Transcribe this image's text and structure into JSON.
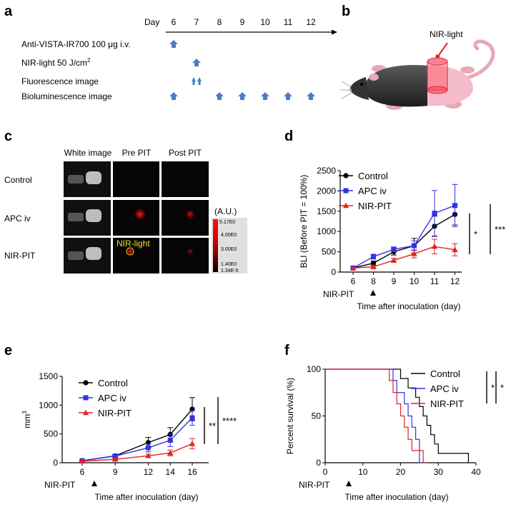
{
  "panels": {
    "a": {
      "label": "a",
      "day_label": "Day",
      "days": [
        "6",
        "7",
        "8",
        "9",
        "10",
        "11",
        "12"
      ],
      "rows": [
        {
          "text": "Anti-VISTA-IR700 100 μg i.v.",
          "days": [
            6
          ]
        },
        {
          "text": "NIR-light 50 J/cm",
          "sup": "2",
          "days": [
            7
          ]
        },
        {
          "text": "Fluorescence image",
          "days": [
            7
          ],
          "double": true
        },
        {
          "text": "Bioluminescence image",
          "days": [
            6,
            8,
            9,
            10,
            11,
            12
          ]
        }
      ],
      "arrow_color": "#4a7cc4"
    },
    "b": {
      "label": "b",
      "light_label": "NIR-light"
    },
    "c": {
      "label": "c",
      "columns": [
        "White image",
        "Pre PIT",
        "Post PIT"
      ],
      "rows": [
        "Control",
        "APC iv",
        "NIR-PIT"
      ],
      "overlay": "NIR-light",
      "colorbar_unit": "(A.U.)",
      "colorbar_ticks": [
        "5.17E0",
        "4.00E0",
        "3.00E0",
        "1.40E0",
        "1.34E-5"
      ]
    },
    "d": {
      "label": "d"
    },
    "e": {
      "label": "e"
    },
    "f": {
      "label": "f"
    }
  },
  "colors": {
    "control": "#000000",
    "apc": "#3232e6",
    "nirpit": "#e62020"
  },
  "chart_data": [
    {
      "panel": "d",
      "type": "line",
      "x": [
        6,
        8,
        9,
        10,
        11,
        12
      ],
      "xticks": [
        "6",
        "8",
        "9",
        "10",
        "11",
        "12"
      ],
      "ylim": [
        0,
        2500
      ],
      "yticks": [
        "0",
        "500",
        "1000",
        "1500",
        "2000",
        "2500"
      ],
      "ylabel": "BLI (Before PIT = 100%)",
      "xlabel": "Time after inoculation (day)",
      "treatment_label": "NIR-PIT",
      "series": [
        {
          "name": "Control",
          "values": [
            100,
            220,
            500,
            650,
            1130,
            1420
          ],
          "err": [
            0,
            50,
            80,
            180,
            250,
            260
          ]
        },
        {
          "name": "APC iv",
          "values": [
            100,
            380,
            560,
            650,
            1450,
            1640
          ],
          "err": [
            0,
            60,
            60,
            120,
            560,
            520
          ]
        },
        {
          "name": "NIR-PIT",
          "values": [
            100,
            130,
            290,
            450,
            630,
            550
          ],
          "err": [
            0,
            30,
            50,
            100,
            180,
            150
          ]
        }
      ],
      "significance": [
        "*",
        "***"
      ]
    },
    {
      "panel": "e",
      "type": "line",
      "x": [
        6,
        9,
        12,
        14,
        16
      ],
      "xticks": [
        "6",
        "9",
        "12",
        "14",
        "16"
      ],
      "ylim": [
        0,
        1500
      ],
      "yticks": [
        "0",
        "500",
        "1000",
        "1500"
      ],
      "ylabel": "mm",
      "ylabel_sup": "3",
      "xlabel": "Time after inoculation (day)",
      "treatment_label": "NIR-PIT",
      "series": [
        {
          "name": "Control",
          "values": [
            35,
            120,
            350,
            490,
            930
          ],
          "err": [
            10,
            25,
            90,
            120,
            200
          ]
        },
        {
          "name": "APC iv",
          "values": [
            35,
            115,
            260,
            390,
            780
          ],
          "err": [
            10,
            20,
            70,
            110,
            130
          ]
        },
        {
          "name": "NIR-PIT",
          "values": [
            25,
            60,
            120,
            170,
            330
          ],
          "err": [
            10,
            15,
            30,
            50,
            90
          ]
        }
      ],
      "significance": [
        "**",
        "****"
      ]
    },
    {
      "panel": "f",
      "type": "line",
      "step": true,
      "xlim": [
        0,
        40
      ],
      "xticks": [
        "0",
        "10",
        "20",
        "30",
        "40"
      ],
      "ylim": [
        0,
        100
      ],
      "yticks": [
        "0",
        "50",
        "100"
      ],
      "ylabel": "Percent survival (%)",
      "xlabel": "Time after inoculation (day)",
      "treatment_label": "NIR-PIT",
      "treatment_day": 6,
      "series": [
        {
          "name": "Control",
          "steps": [
            [
              0,
              100
            ],
            [
              20,
              100
            ],
            [
              20,
              90
            ],
            [
              22,
              90
            ],
            [
              22,
              80
            ],
            [
              24,
              80
            ],
            [
              24,
              70
            ],
            [
              25,
              70
            ],
            [
              25,
              60
            ],
            [
              26,
              60
            ],
            [
              26,
              50
            ],
            [
              27,
              50
            ],
            [
              27,
              40
            ],
            [
              28,
              40
            ],
            [
              28,
              30
            ],
            [
              29,
              30
            ],
            [
              29,
              20
            ],
            [
              30,
              20
            ],
            [
              30,
              10
            ],
            [
              38,
              10
            ],
            [
              38,
              0
            ]
          ]
        },
        {
          "name": "APC iv",
          "steps": [
            [
              0,
              100
            ],
            [
              18,
              100
            ],
            [
              18,
              88
            ],
            [
              19,
              88
            ],
            [
              19,
              75
            ],
            [
              21,
              75
            ],
            [
              21,
              63
            ],
            [
              22,
              63
            ],
            [
              22,
              50
            ],
            [
              23,
              50
            ],
            [
              23,
              38
            ],
            [
              24,
              38
            ],
            [
              24,
              25
            ],
            [
              25,
              25
            ],
            [
              25,
              0
            ],
            [
              27,
              0
            ]
          ]
        },
        {
          "name": "NIR-PIT",
          "steps": [
            [
              0,
              100
            ],
            [
              17,
              100
            ],
            [
              17,
              88
            ],
            [
              18,
              88
            ],
            [
              18,
              75
            ],
            [
              19,
              75
            ],
            [
              19,
              63
            ],
            [
              20,
              63
            ],
            [
              20,
              50
            ],
            [
              21,
              50
            ],
            [
              21,
              38
            ],
            [
              22,
              38
            ],
            [
              22,
              25
            ],
            [
              23,
              25
            ],
            [
              23,
              13
            ],
            [
              26,
              13
            ],
            [
              26,
              0
            ],
            [
              27,
              0
            ]
          ]
        }
      ],
      "significance": [
        "*",
        "*"
      ]
    }
  ]
}
